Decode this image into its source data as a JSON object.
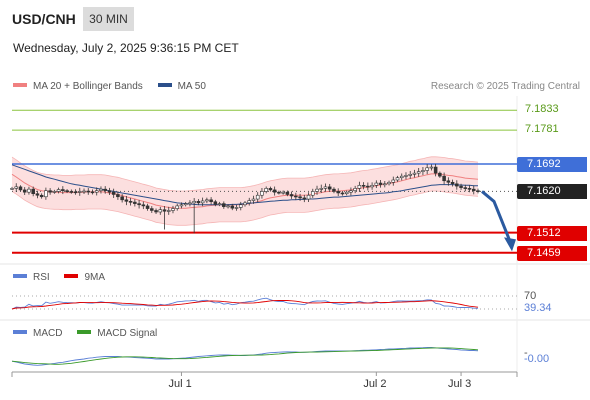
{
  "header": {
    "symbol": "USD/CNH",
    "interval": "30 MIN",
    "timestamp": "Wednesday, July 2, 2025 9:36:15 PM CET"
  },
  "legends": {
    "main": [
      {
        "label": "MA 20 + Bollinger Bands",
        "color": "#f08080"
      },
      {
        "label": "MA 50",
        "color": "#2b4f8a"
      }
    ],
    "rsi": [
      {
        "label": "RSI",
        "color": "#5b7fd6"
      },
      {
        "label": "9MA",
        "color": "#e00000"
      }
    ],
    "macd": [
      {
        "label": "MACD",
        "color": "#5b7fd6"
      },
      {
        "label": "MACD Signal",
        "color": "#3a9a2a"
      }
    ]
  },
  "credit": "Research © 2025 Trading Central",
  "chart_data": [
    {
      "type": "candlestick",
      "panel": "price",
      "ylim": [
        7.144,
        7.186
      ],
      "levels": [
        {
          "value": 7.1833,
          "label": "7.1833",
          "kind": "resistance-green",
          "color": "#8ac43f"
        },
        {
          "value": 7.1781,
          "label": "7.1781",
          "kind": "resistance-green",
          "color": "#8ac43f"
        },
        {
          "value": 7.1692,
          "label": "7.1692",
          "kind": "pivot",
          "color": "#3f6fd8"
        },
        {
          "value": 7.162,
          "label": "7.1620",
          "kind": "last-price",
          "color": "#222222"
        },
        {
          "value": 7.1512,
          "label": "7.1512",
          "kind": "support-red",
          "color": "#e00000"
        },
        {
          "value": 7.1459,
          "label": "7.1459",
          "kind": "support-red",
          "color": "#e00000"
        }
      ],
      "close": [
        7.1628,
        7.1632,
        7.1624,
        7.1618,
        7.1626,
        7.1614,
        7.161,
        7.1606,
        7.1622,
        7.1618,
        7.162,
        7.1625,
        7.1622,
        7.162,
        7.1619,
        7.1618,
        7.162,
        7.1621,
        7.1619,
        7.1618,
        7.1622,
        7.1626,
        7.1622,
        7.1618,
        7.1612,
        7.1606,
        7.1598,
        7.1594,
        7.1592,
        7.1588,
        7.1585,
        7.1582,
        7.1575,
        7.157,
        7.1566,
        7.1572,
        7.1568,
        7.157,
        7.1575,
        7.1582,
        7.1585,
        7.1588,
        7.159,
        7.1594,
        7.159,
        7.1595,
        7.1598,
        7.1593,
        7.1586,
        7.1588,
        7.158,
        7.1582,
        7.1576,
        7.1578,
        7.1585,
        7.159,
        7.1596,
        7.16,
        7.161,
        7.162,
        7.1628,
        7.1624,
        7.1618,
        7.1616,
        7.1618,
        7.1612,
        7.1608,
        7.1606,
        7.1603,
        7.16,
        7.161,
        7.162,
        7.1626,
        7.1628,
        7.1632,
        7.1626,
        7.162,
        7.1616,
        7.1614,
        7.1618,
        7.1622,
        7.1628,
        7.1636,
        7.1634,
        7.1632,
        7.1636,
        7.1642,
        7.1638,
        7.164,
        7.1644,
        7.165,
        7.1656,
        7.166,
        7.1662,
        7.1665,
        7.1668,
        7.1672,
        7.1675,
        7.1682,
        7.1684,
        7.1668,
        7.166,
        7.1648,
        7.1644,
        7.164,
        7.1634,
        7.163,
        7.1628,
        7.1626,
        7.1622,
        7.162
      ],
      "ma20": [
        7.1665,
        7.1658,
        7.165,
        7.1642,
        7.1636,
        7.163,
        7.1625,
        7.1622,
        7.162,
        7.1619,
        7.1618,
        7.1618,
        7.1617,
        7.1617,
        7.1617,
        7.1618,
        7.1618,
        7.1618,
        7.1619,
        7.1619,
        7.1619,
        7.1619,
        7.1618,
        7.1616,
        7.1614,
        7.1612,
        7.1609,
        7.1606,
        7.1603,
        7.16,
        7.1597,
        7.1594,
        7.1591,
        7.1588,
        7.1584,
        7.1582,
        7.158,
        7.1578,
        7.1577,
        7.1576,
        7.1576,
        7.1576,
        7.1577,
        7.1578,
        7.1579,
        7.158,
        7.1582,
        7.1583,
        7.1584,
        7.1585,
        7.1585,
        7.1585,
        7.1585,
        7.1585,
        7.1585,
        7.1586,
        7.1588,
        7.159,
        7.1593,
        7.1596,
        7.16,
        7.1603,
        7.1605,
        7.1607,
        7.1609,
        7.161,
        7.161,
        7.161,
        7.161,
        7.161,
        7.1611,
        7.1613,
        7.1615,
        7.1617,
        7.1619,
        7.162,
        7.1621,
        7.1621,
        7.1622,
        7.1623,
        7.1624,
        7.1626,
        7.1628,
        7.163,
        7.1631,
        7.1633,
        7.1635,
        7.1637,
        7.1639,
        7.1641,
        7.1643,
        7.1645,
        7.1648,
        7.1651,
        7.1654,
        7.1656,
        7.1659,
        7.1661,
        7.1664,
        7.1666,
        7.1666,
        7.1665,
        7.1664,
        7.1662,
        7.1661,
        7.1659,
        7.1657,
        7.1655,
        7.1654,
        7.1653,
        7.1652
      ],
      "ma50": [
        7.169,
        7.1686,
        7.1682,
        7.1678,
        7.1674,
        7.167,
        7.1666,
        7.1662,
        7.1658,
        7.1655,
        7.1652,
        7.1649,
        7.1646,
        7.1643,
        7.164,
        7.1638,
        7.1636,
        7.1634,
        7.1632,
        7.163,
        7.1628,
        7.1626,
        7.1624,
        7.1622,
        7.162,
        7.1618,
        7.1616,
        7.1614,
        7.1612,
        7.161,
        7.1608,
        7.1606,
        7.1604,
        7.1602,
        7.16,
        7.1598,
        7.1596,
        7.1594,
        7.1592,
        7.159,
        7.1589,
        7.1588,
        7.1587,
        7.1586,
        7.1585,
        7.1585,
        7.1585,
        7.1585,
        7.1585,
        7.1585,
        7.1585,
        7.1585,
        7.1586,
        7.1586,
        7.1587,
        7.1588,
        7.1589,
        7.159,
        7.1591,
        7.1592,
        7.1593,
        7.1594,
        7.1595,
        7.1596,
        7.1597,
        7.1597,
        7.1598,
        7.1598,
        7.1599,
        7.1599,
        7.16,
        7.16,
        7.1601,
        7.1602,
        7.1603,
        7.1604,
        7.1605,
        7.1605,
        7.1606,
        7.1607,
        7.1608,
        7.1609,
        7.161,
        7.1611,
        7.1612,
        7.1613,
        7.1614,
        7.1615,
        7.1616,
        7.1617,
        7.1619,
        7.162,
        7.1622,
        7.1624,
        7.1626,
        7.1628,
        7.163,
        7.1632,
        7.1634,
        7.1636,
        7.1637,
        7.1638,
        7.1638,
        7.1638,
        7.1638,
        7.1637,
        7.1637,
        7.1636,
        7.1636,
        7.1635,
        7.1635
      ],
      "bb_width": 0.0045,
      "forecast": [
        {
          "value": 7.162
        },
        {
          "value": 7.1468
        }
      ]
    },
    {
      "type": "line",
      "panel": "rsi",
      "ylim": [
        0,
        100
      ],
      "levels": [
        {
          "value": 70,
          "label": "70"
        }
      ],
      "last_value_label": "39.34",
      "series": [
        {
          "name": "RSI",
          "color": "#5b7fd6"
        },
        {
          "name": "9MA",
          "color": "#e00000"
        }
      ]
    },
    {
      "type": "line",
      "panel": "macd",
      "last_value_label": "-0.00",
      "series": [
        {
          "name": "MACD",
          "color": "#5b7fd6"
        },
        {
          "name": "MACD Signal",
          "color": "#3a9a2a"
        }
      ]
    }
  ],
  "x_axis": {
    "ticks": [
      "Jul 1",
      "Jul 2",
      "Jul 3"
    ],
    "tick_index": [
      40,
      86,
      106
    ]
  }
}
